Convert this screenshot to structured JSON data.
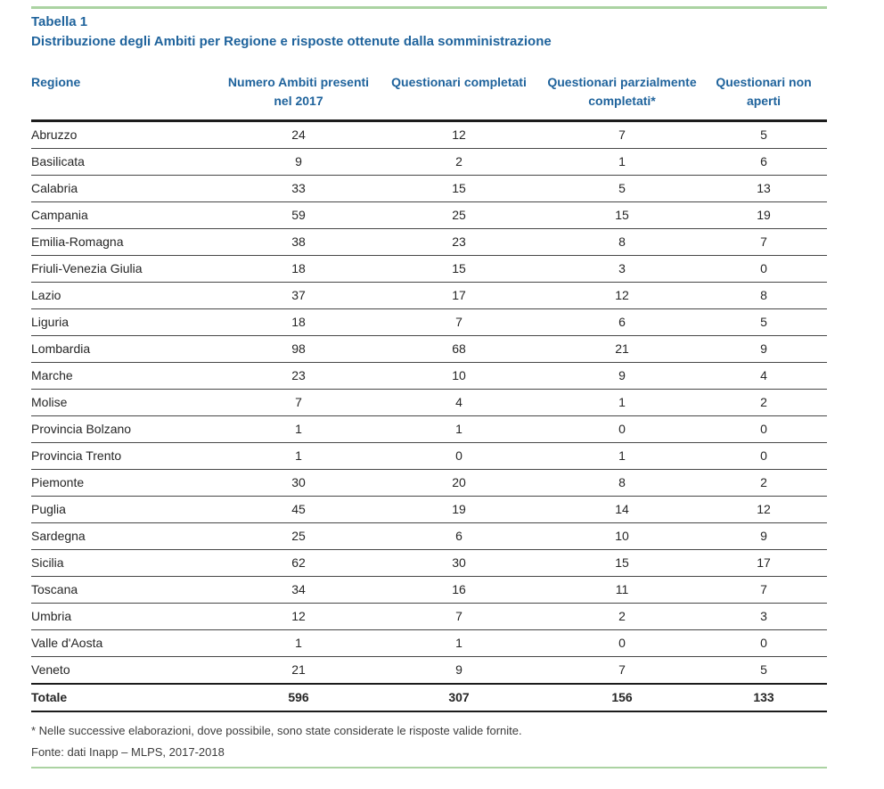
{
  "page": {
    "title": "Tabella 1",
    "subtitle": "Distribuzione degli Ambiti per Regione e risposte ottenute dalla somministrazione"
  },
  "table": {
    "columns": [
      "Regione",
      "Numero Ambiti presenti nel 2017",
      "Questionari completati",
      "Questionari parzialmente completati*",
      "Questionari non aperti"
    ],
    "rows": [
      {
        "region": "Abruzzo",
        "values": [
          "24",
          "12",
          "7",
          "5"
        ]
      },
      {
        "region": "Basilicata",
        "values": [
          "9",
          "2",
          "1",
          "6"
        ]
      },
      {
        "region": "Calabria",
        "values": [
          "33",
          "15",
          "5",
          "13"
        ]
      },
      {
        "region": "Campania",
        "values": [
          "59",
          "25",
          "15",
          "19"
        ]
      },
      {
        "region": "Emilia-Romagna",
        "values": [
          "38",
          "23",
          "8",
          "7"
        ]
      },
      {
        "region": "Friuli-Venezia Giulia",
        "values": [
          "18",
          "15",
          "3",
          "0"
        ]
      },
      {
        "region": "Lazio",
        "values": [
          "37",
          "17",
          "12",
          "8"
        ]
      },
      {
        "region": "Liguria",
        "values": [
          "18",
          "7",
          "6",
          "5"
        ]
      },
      {
        "region": "Lombardia",
        "values": [
          "98",
          "68",
          "21",
          "9"
        ]
      },
      {
        "region": "Marche",
        "values": [
          "23",
          "10",
          "9",
          "4"
        ]
      },
      {
        "region": "Molise",
        "values": [
          "7",
          "4",
          "1",
          "2"
        ]
      },
      {
        "region": "Provincia Bolzano",
        "values": [
          "1",
          "1",
          "0",
          "0"
        ]
      },
      {
        "region": "Provincia Trento",
        "values": [
          "1",
          "0",
          "1",
          "0"
        ]
      },
      {
        "region": "Piemonte",
        "values": [
          "30",
          "20",
          "8",
          "2"
        ]
      },
      {
        "region": "Puglia",
        "values": [
          "45",
          "19",
          "14",
          "12"
        ]
      },
      {
        "region": "Sardegna",
        "values": [
          "25",
          "6",
          "10",
          "9"
        ]
      },
      {
        "region": "Sicilia",
        "values": [
          "62",
          "30",
          "15",
          "17"
        ]
      },
      {
        "region": "Toscana",
        "values": [
          "34",
          "16",
          "11",
          "7"
        ]
      },
      {
        "region": "Umbria",
        "values": [
          "12",
          "7",
          "2",
          "3"
        ]
      },
      {
        "region": "Valle d'Aosta",
        "values": [
          "1",
          "1",
          "0",
          "0"
        ]
      },
      {
        "region": "Veneto",
        "values": [
          "21",
          "9",
          "7",
          "5"
        ]
      }
    ],
    "total": {
      "label": "Totale",
      "values": [
        "596",
        "307",
        "156",
        "133"
      ]
    }
  },
  "notes": {
    "footnote": "* Nelle successive elaborazioni, dove possibile, sono state considerate le risposte valide fornite.",
    "source": "Fonte: dati Inapp – MLPS, 2017-2018"
  },
  "colors": {
    "accent_blue": "#1F639C",
    "accent_green": "#ABD3A2"
  }
}
